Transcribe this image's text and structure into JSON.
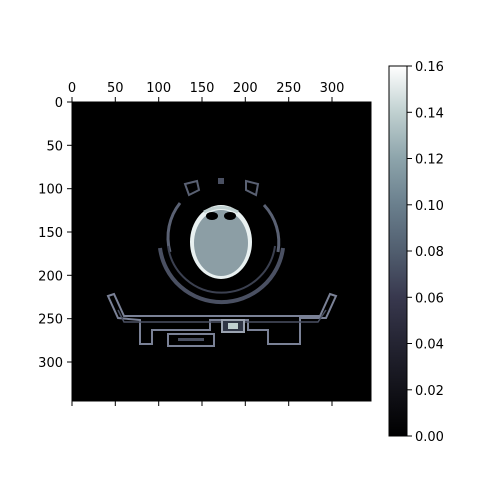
{
  "chart_data": {
    "type": "heatmap",
    "title": "",
    "xlabel": "",
    "ylabel": "",
    "xlim": [
      0,
      345
    ],
    "ylim": [
      345,
      0
    ],
    "x_tick_labels_top": [
      "0",
      "50",
      "100",
      "150",
      "200",
      "250",
      "300"
    ],
    "y_tick_labels": [
      "0",
      "50",
      "100",
      "150",
      "200",
      "250",
      "300"
    ],
    "colorbar": {
      "colormap": "bone",
      "range": [
        0.0,
        0.16
      ],
      "tick_labels": [
        "0.00",
        "0.02",
        "0.04",
        "0.06",
        "0.08",
        "0.10",
        "0.12",
        "0.14",
        "0.16"
      ]
    },
    "image_content": "axial CT slice: head cross-section with surrounding head-holder arcs and patient couch",
    "grid": false,
    "colors": {
      "background": "#000000",
      "soft_tissue": "#8c9ea5",
      "bone_edge": "#e9f1f1",
      "support_structures": "#7a8196"
    }
  }
}
